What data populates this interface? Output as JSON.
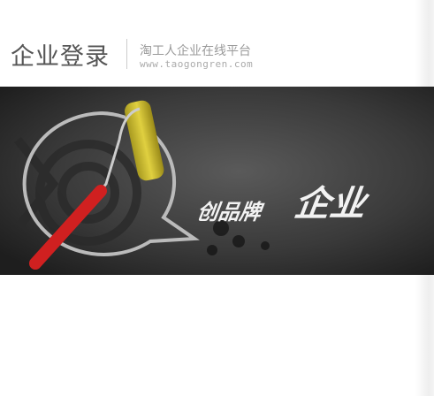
{
  "header": {
    "title": "企业登录",
    "subtitle": "淘工人企业在线平台",
    "url": "www.taogongren.com"
  },
  "banner": {
    "slogan_small": "创品牌",
    "slogan_large": "企业"
  }
}
